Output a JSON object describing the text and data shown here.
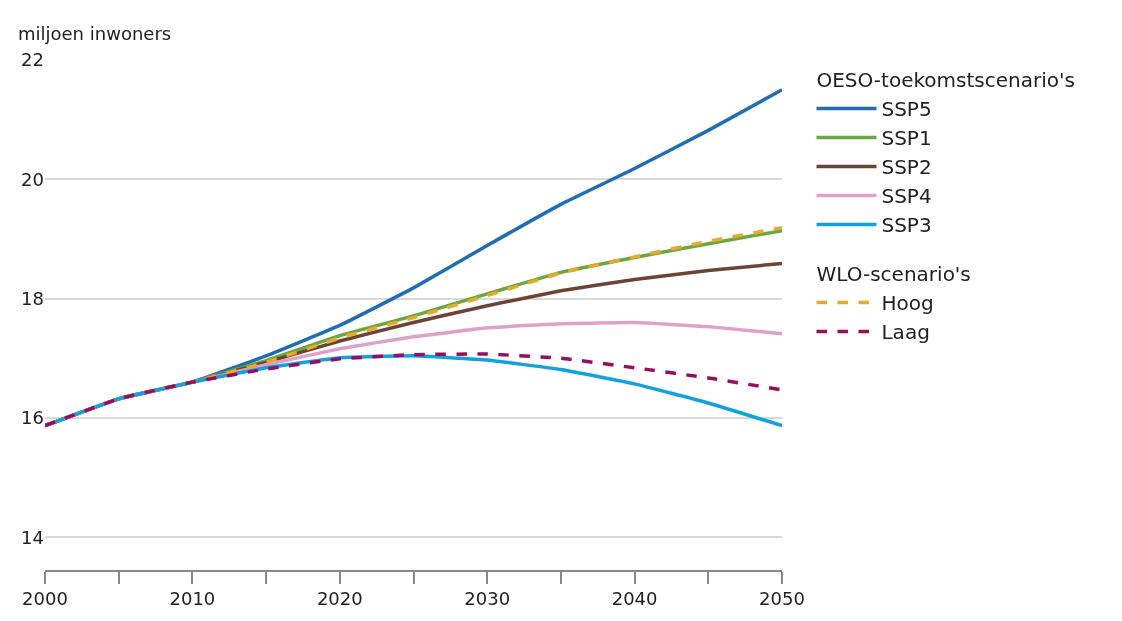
{
  "chart_data": {
    "type": "line",
    "ylabel": "miljoen inwoners",
    "legend_title": [
      "OESO-toekomstscenario's",
      "WLO-scenario's"
    ],
    "x": [
      2000,
      2005,
      2010,
      2015,
      2020,
      2025,
      2030,
      2035,
      2040,
      2045,
      2050
    ],
    "series": [
      {
        "name": "SSP5",
        "color": "#1f6db5",
        "line_style": "solid",
        "values": [
          15.87,
          16.32,
          16.6,
          17.04,
          17.55,
          18.18,
          18.89,
          19.58,
          20.18,
          20.82,
          21.5
        ]
      },
      {
        "name": "SSP1",
        "color": "#6aa83f",
        "line_style": "solid",
        "values": [
          15.87,
          16.32,
          16.6,
          16.96,
          17.38,
          17.71,
          18.08,
          18.44,
          18.69,
          18.92,
          19.14
        ]
      },
      {
        "name": "SSP2",
        "color": "#6b4433",
        "line_style": "solid",
        "values": [
          15.87,
          16.32,
          16.6,
          16.93,
          17.29,
          17.6,
          17.88,
          18.13,
          18.32,
          18.47,
          18.59
        ]
      },
      {
        "name": "SSP4",
        "color": "#dfa0c9",
        "line_style": "solid",
        "values": [
          15.87,
          16.32,
          16.6,
          16.89,
          17.16,
          17.36,
          17.51,
          17.58,
          17.6,
          17.53,
          17.41
        ]
      },
      {
        "name": "SSP3",
        "color": "#10a2e0",
        "line_style": "solid",
        "values": [
          15.87,
          16.32,
          16.6,
          16.84,
          17.01,
          17.04,
          16.97,
          16.81,
          16.57,
          16.25,
          15.87
        ]
      },
      {
        "name": "Hoog",
        "color": "#eaa928",
        "line_style": "dashed",
        "values": [
          15.87,
          16.32,
          16.6,
          16.93,
          17.34,
          17.68,
          18.05,
          18.43,
          18.7,
          18.96,
          19.19
        ]
      },
      {
        "name": "Laag",
        "color": "#9b0b60",
        "line_style": "dashed",
        "values": [
          15.87,
          16.32,
          16.6,
          16.82,
          16.99,
          17.06,
          17.07,
          17.0,
          16.84,
          16.67,
          16.47
        ]
      }
    ],
    "xlim": [
      2000,
      2050
    ],
    "xticks": [
      2000,
      {
        "value": 2005,
        "label": null
      },
      2010,
      {
        "value": 2015,
        "label": null
      },
      2020,
      {
        "value": 2025,
        "label": null
      },
      2030,
      {
        "value": 2035,
        "label": null
      },
      2040,
      {
        "value": 2045,
        "label": null
      },
      2050
    ],
    "ylim": [
      13.45,
      22
    ],
    "yticks": [
      14,
      16,
      18,
      20,
      22
    ],
    "grid": "y",
    "legend": "right",
    "marker": "none"
  }
}
